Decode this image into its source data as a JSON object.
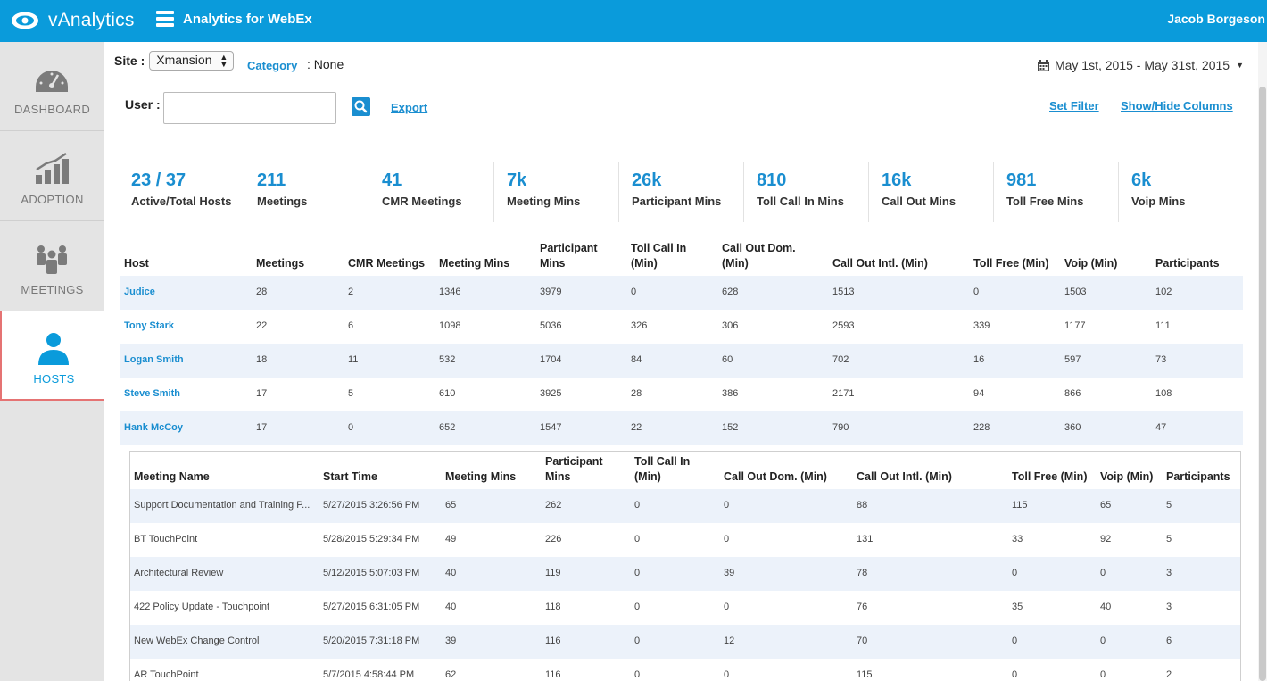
{
  "header": {
    "logo_text": "vAnalytics",
    "app_title": "Analytics for WebEx",
    "user_name": "Jacob Borgeson"
  },
  "sidebar": {
    "items": [
      {
        "label": "DASHBOARD",
        "icon": "gauge-icon"
      },
      {
        "label": "ADOPTION",
        "icon": "chart-icon"
      },
      {
        "label": "MEETINGS",
        "icon": "people-icon"
      },
      {
        "label": "HOSTS",
        "icon": "person-icon",
        "active": true
      }
    ]
  },
  "filters": {
    "site_label": "Site :",
    "site_value": "Xmansion",
    "category_link": "Category",
    "category_value": ": None",
    "date_range": "May 1st, 2015 - May 31st, 2015",
    "user_label": "User :",
    "user_value": "",
    "export_link": "Export",
    "set_filter_link": "Set Filter",
    "show_hide_link": "Show/Hide Columns"
  },
  "stats": [
    {
      "value": "23 / 37",
      "caption": "Active/Total Hosts"
    },
    {
      "value": "211",
      "caption": "Meetings"
    },
    {
      "value": "41",
      "caption": "CMR Meetings"
    },
    {
      "value": "7k",
      "caption": "Meeting Mins"
    },
    {
      "value": "26k",
      "caption": "Participant Mins"
    },
    {
      "value": "810",
      "caption": "Toll Call In Mins"
    },
    {
      "value": "16k",
      "caption": "Call Out Mins"
    },
    {
      "value": "981",
      "caption": "Toll Free Mins"
    },
    {
      "value": "6k",
      "caption": "Voip Mins"
    }
  ],
  "hosts_table": {
    "columns": [
      "Host",
      "Meetings",
      "CMR Meetings",
      "Meeting Mins",
      "Participant Mins",
      "Toll Call In (Min)",
      "Call Out Dom. (Min)",
      "Call Out Intl. (Min)",
      "Toll Free (Min)",
      "Voip (Min)",
      "Participants"
    ],
    "rows": [
      [
        "Judice",
        "28",
        "2",
        "1346",
        "3979",
        "0",
        "628",
        "1513",
        "0",
        "1503",
        "102"
      ],
      [
        "Tony Stark",
        "22",
        "6",
        "1098",
        "5036",
        "326",
        "306",
        "2593",
        "339",
        "1177",
        "111"
      ],
      [
        "Logan Smith",
        "18",
        "11",
        "532",
        "1704",
        "84",
        "60",
        "702",
        "16",
        "597",
        "73"
      ],
      [
        "Steve Smith",
        "17",
        "5",
        "610",
        "3925",
        "28",
        "386",
        "2171",
        "94",
        "866",
        "108"
      ],
      [
        "Hank McCoy",
        "17",
        "0",
        "652",
        "1547",
        "22",
        "152",
        "790",
        "228",
        "360",
        "47"
      ]
    ]
  },
  "meetings_table": {
    "columns": [
      "Meeting Name",
      "Start Time",
      "Meeting Mins",
      "Participant Mins",
      "Toll Call In (Min)",
      "Call Out Dom. (Min)",
      "Call Out Intl. (Min)",
      "Toll Free (Min)",
      "Voip (Min)",
      "Participants"
    ],
    "rows": [
      [
        "Support Documentation and Training P...",
        "5/27/2015 3:26:56 PM",
        "65",
        "262",
        "0",
        "0",
        "88",
        "115",
        "65",
        "5"
      ],
      [
        "BT TouchPoint",
        "5/28/2015 5:29:34 PM",
        "49",
        "226",
        "0",
        "0",
        "131",
        "33",
        "92",
        "5"
      ],
      [
        "Architectural Review",
        "5/12/2015 5:07:03 PM",
        "40",
        "119",
        "0",
        "39",
        "78",
        "0",
        "0",
        "3"
      ],
      [
        "422 Policy Update - Touchpoint",
        "5/27/2015 6:31:05 PM",
        "40",
        "118",
        "0",
        "0",
        "76",
        "35",
        "40",
        "3"
      ],
      [
        "New WebEx Change Control",
        "5/20/2015 7:31:18 PM",
        "39",
        "116",
        "0",
        "12",
        "70",
        "0",
        "0",
        "6"
      ],
      [
        "AR TouchPoint",
        "5/7/2015 4:58:44 PM",
        "62",
        "116",
        "0",
        "0",
        "115",
        "0",
        "0",
        "2"
      ]
    ]
  },
  "colors": {
    "topbar": "#0a9bdb",
    "link": "#1a8ed0",
    "row_alt": "#ecf2fa",
    "sidebar": "#e4e4e4"
  }
}
